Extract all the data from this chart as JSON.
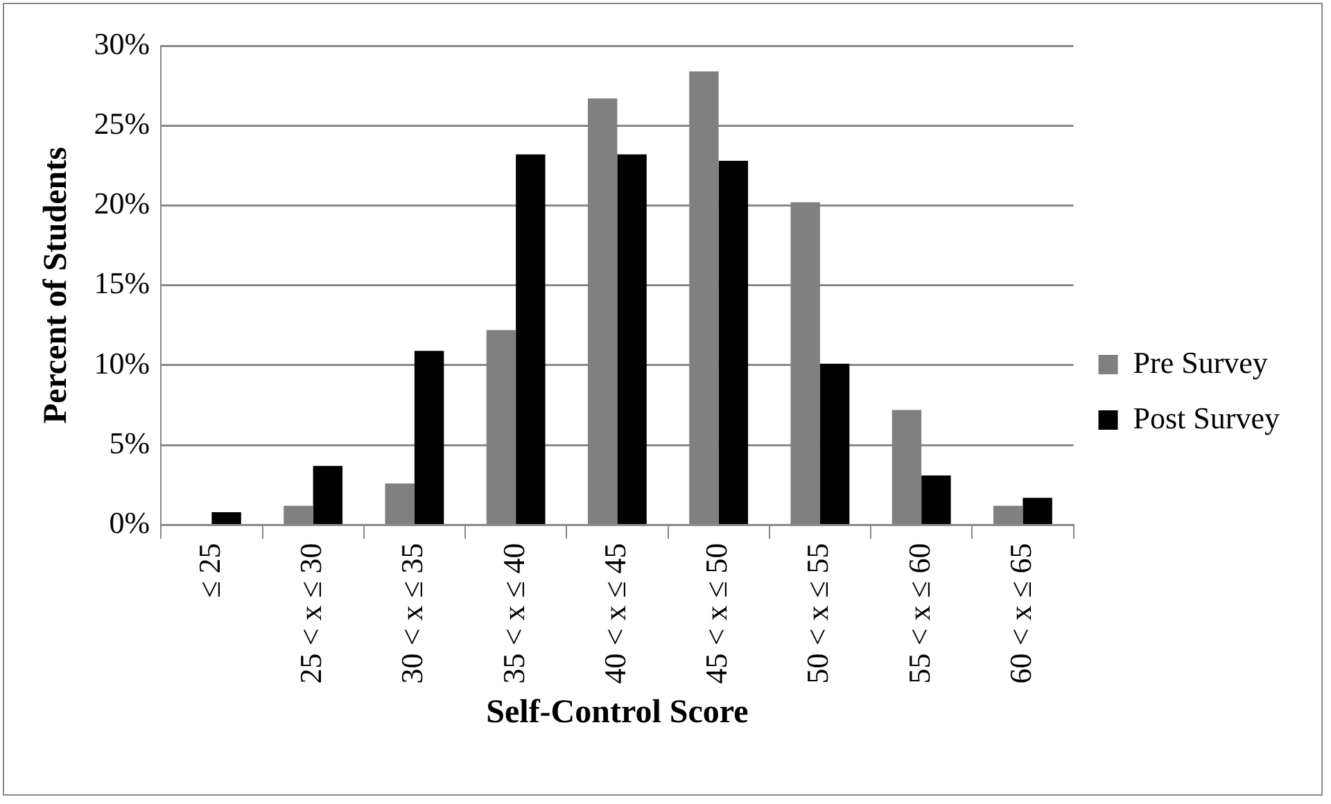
{
  "chart_data": {
    "type": "bar",
    "xlabel": "Self-Control Score",
    "ylabel": "Percent of Students",
    "categories": [
      "≤ 25",
      "25 < x ≤ 30",
      "30 < x ≤ 35",
      "35 < x ≤ 40",
      "40 < x ≤ 45",
      "45 < x ≤ 50",
      "50 < x ≤ 55",
      "55 < x ≤ 60",
      "60 < x ≤ 65"
    ],
    "series": [
      {
        "name": "Pre Survey",
        "color": "#808080",
        "values": [
          0,
          1.2,
          2.6,
          12.2,
          26.7,
          28.4,
          20.2,
          7.2,
          1.2
        ]
      },
      {
        "name": "Post Survey",
        "color": "#000000",
        "values": [
          0.8,
          3.7,
          10.9,
          23.2,
          23.2,
          22.8,
          10.1,
          3.1,
          1.7
        ]
      }
    ],
    "ylim": [
      0,
      30
    ],
    "yticks": [
      {
        "value": 0,
        "label": "0%"
      },
      {
        "value": 5,
        "label": "5%"
      },
      {
        "value": 10,
        "label": "10%"
      },
      {
        "value": 15,
        "label": "15%"
      },
      {
        "value": 20,
        "label": "20%"
      },
      {
        "value": 25,
        "label": "25%"
      },
      {
        "value": 30,
        "label": "30%"
      }
    ],
    "grid": "y",
    "legend": "right"
  }
}
